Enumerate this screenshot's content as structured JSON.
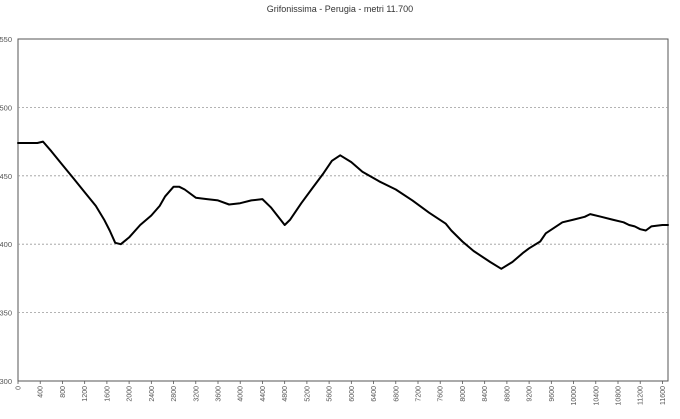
{
  "chart_data": {
    "type": "line",
    "title": "Grifonissima - Perugia - metri 11.700",
    "xlabel": "",
    "ylabel": "",
    "xlim": [
      0,
      11700
    ],
    "ylim": [
      300,
      550
    ],
    "grid": true,
    "yticks": [
      300,
      350,
      400,
      450,
      500,
      550
    ],
    "xticks": [
      0,
      400,
      800,
      1200,
      1600,
      2000,
      2400,
      2800,
      3200,
      3600,
      4000,
      4400,
      4800,
      5200,
      5600,
      6000,
      6400,
      6800,
      7200,
      7600,
      8000,
      8400,
      8800,
      9200,
      9600,
      10000,
      10400,
      10800,
      11200,
      11600
    ],
    "xtick_labels": [
      "0",
      "400",
      "800",
      "1200",
      "1600",
      "2000",
      "2400",
      "2800",
      "3200",
      "3600",
      "4000",
      "4400",
      "4800",
      "5200",
      "5600",
      "6000",
      "6400",
      "6800",
      "7200",
      "7600",
      "8000",
      "8400",
      "8800",
      "9200",
      "9600",
      "10000",
      "10400",
      "10800",
      "11200",
      "11600"
    ],
    "series": [
      {
        "x": [
          0,
          150,
          350,
          450,
          600,
          800,
          1000,
          1200,
          1400,
          1550,
          1650,
          1750,
          1850,
          2000,
          2200,
          2400,
          2550,
          2650,
          2800,
          2900,
          3000,
          3200,
          3400,
          3600,
          3800,
          4000,
          4200,
          4400,
          4550,
          4800,
          4900,
          5100,
          5300,
          5500,
          5650,
          5800,
          6000,
          6200,
          6500,
          6800,
          7100,
          7400,
          7700,
          7800,
          8000,
          8200,
          8500,
          8700,
          8900,
          9100,
          9200,
          9400,
          9500,
          9800,
          10000,
          10200,
          10300,
          10500,
          10700,
          10900,
          11000,
          11100,
          11200,
          11300,
          11400,
          11600,
          11700
        ],
        "y": [
          474,
          474,
          474,
          475,
          468,
          458,
          448,
          438,
          428,
          418,
          410,
          401,
          400,
          405,
          414,
          421,
          428,
          435,
          442,
          442,
          440,
          434,
          433,
          432,
          429,
          430,
          432,
          433,
          427,
          414,
          418,
          430,
          441,
          452,
          461,
          465,
          460,
          453,
          446,
          440,
          432,
          423,
          415,
          410,
          402,
          395,
          387,
          382,
          387,
          394,
          397,
          402,
          408,
          416,
          418,
          420,
          422,
          420,
          418,
          416,
          414,
          413,
          411,
          410,
          413,
          414,
          414
        ]
      }
    ]
  }
}
